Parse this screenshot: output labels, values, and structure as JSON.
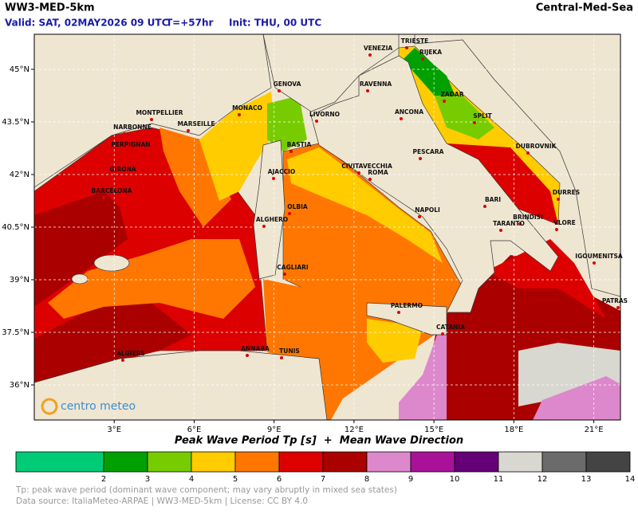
{
  "header": {
    "model": "WW3-MED-5km",
    "region": "Central-Med-Sea",
    "valid": "Valid: SAT, 02MAY2026 09 UTC",
    "lead": "T=+57hr",
    "init": "Init: THU, 00 UTC"
  },
  "map": {
    "xlim": [
      0,
      22
    ],
    "ylim": [
      35,
      46
    ],
    "xticks": [
      {
        "value": 3,
        "label": "3°E"
      },
      {
        "value": 6,
        "label": "6°E"
      },
      {
        "value": 9,
        "label": "9°E"
      },
      {
        "value": 12,
        "label": "12°E"
      },
      {
        "value": 15,
        "label": "15°E"
      },
      {
        "value": 18,
        "label": "18°E"
      },
      {
        "value": 21,
        "label": "21°E"
      }
    ],
    "yticks": [
      {
        "value": 36,
        "label": "36°N"
      },
      {
        "value": 37.5,
        "label": "37.5°N"
      },
      {
        "value": 39,
        "label": "39°N"
      },
      {
        "value": 40.5,
        "label": "40.5°N"
      },
      {
        "value": 42,
        "label": "42°N"
      },
      {
        "value": 43.5,
        "label": "43.5°N"
      },
      {
        "value": 45,
        "label": "45°N"
      }
    ],
    "grid": true,
    "cities": [
      "TRIESTE",
      "VENEZIA",
      "RIJEKA",
      "RAVENNA",
      "ZADAR",
      "GENOVA",
      "MONACO",
      "MONTPELLIER",
      "MARSEILLE",
      "LIVORNO",
      "ANCONA",
      "SPLIT",
      "NARBONNE",
      "PERPIGNAN",
      "BASTIA",
      "DUBROVNIK",
      "PESCARA",
      "GIRONA",
      "AJACCIO",
      "CIVITAVECCHIA",
      "ROMA",
      "BARCELONA",
      "DURRES",
      "BARI",
      "OLBIA",
      "NAPOLI",
      "ALGHERO",
      "BRINDISI",
      "TARANTO",
      "VLORE",
      "IGOUMENITSA",
      "CAGLIARI",
      "PATRAS",
      "PALERMO",
      "CATANIA",
      "ALGIERS",
      "ANNABA",
      "TUNIS"
    ],
    "logo": "centro meteo"
  },
  "caption": "Peak Wave Period Tp [s]  +  Mean Wave Direction",
  "colorbar": {
    "xlim": [
      0,
      14
    ],
    "ticks": [
      2,
      3,
      4,
      5,
      6,
      7,
      8,
      9,
      10,
      11,
      12,
      13,
      14
    ],
    "colors": [
      "#00cc77",
      "#00a000",
      "#77cc00",
      "#ffcc00",
      "#ff7700",
      "#dd0000",
      "#aa0000",
      "#dd88cc",
      "#aa1199",
      "#660077",
      "#d8d8d0",
      "#6b6b6b",
      "#444444"
    ]
  },
  "footer": [
    "Tp: peak wave period (dominant wave component; may vary abruptly in mixed sea states)",
    "Data source: ItaliaMeteo-ARPAE | WW3-MED-5km | License: CC BY 4.0"
  ]
}
